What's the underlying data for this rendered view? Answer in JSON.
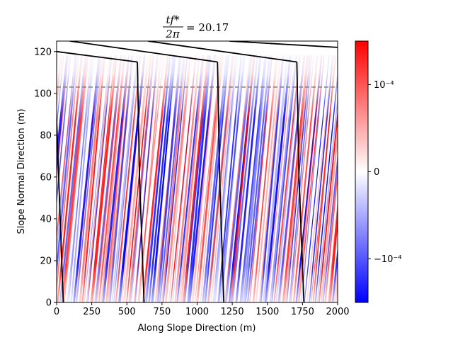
{
  "chart_data": {
    "type": "heatmap",
    "title": {
      "numerator": "tf*",
      "denominator": "2π",
      "equals": "= 20.17"
    },
    "xlabel": "Along Slope Direction (m)",
    "ylabel": "Slope Normal Direction (m)",
    "xlim": [
      0,
      2000
    ],
    "ylim": [
      0,
      125
    ],
    "x_ticks": [
      0,
      250,
      500,
      750,
      1000,
      1250,
      1500,
      1750,
      2000
    ],
    "y_ticks": [
      0,
      20,
      40,
      60,
      80,
      100,
      120
    ],
    "grid": false,
    "colormap": "bwr",
    "colorbar": {
      "vmin": -0.00015,
      "vmax": 0.00015,
      "ticks": [
        {
          "value": 0.0001,
          "label": "10⁻⁴"
        },
        {
          "value": 0,
          "label": "0"
        },
        {
          "value": -0.0001,
          "label": "−10⁻⁴"
        }
      ]
    },
    "reference_line": {
      "y": 103,
      "style": "dashed",
      "color": "#888888"
    },
    "topography_curves": [
      {
        "top": [
          [
            0,
            120
          ],
          [
            575,
            115
          ]
        ],
        "wall": [
          [
            575,
            115
          ],
          [
            590,
            60
          ],
          [
            622,
            0
          ]
        ]
      },
      {
        "top": [
          [
            95,
            125
          ],
          [
            1145,
            115
          ]
        ],
        "wall": [
          [
            1145,
            115
          ],
          [
            1160,
            60
          ],
          [
            1190,
            0
          ]
        ]
      },
      {
        "top": [
          [
            650,
            125
          ],
          [
            1710,
            115
          ]
        ],
        "wall": [
          [
            1710,
            115
          ],
          [
            1725,
            60
          ],
          [
            1760,
            0
          ]
        ]
      },
      {
        "top": [
          [
            1230,
            125
          ],
          [
            2000,
            122
          ]
        ],
        "wall": []
      },
      {
        "top": [],
        "wall": [
          [
            0,
            88
          ],
          [
            25,
            40
          ],
          [
            48,
            0
          ]
        ]
      }
    ],
    "colors": {
      "positive": "#ff0000",
      "negative": "#0000ff",
      "zero": "#ffffff",
      "curve": "#000000"
    }
  }
}
